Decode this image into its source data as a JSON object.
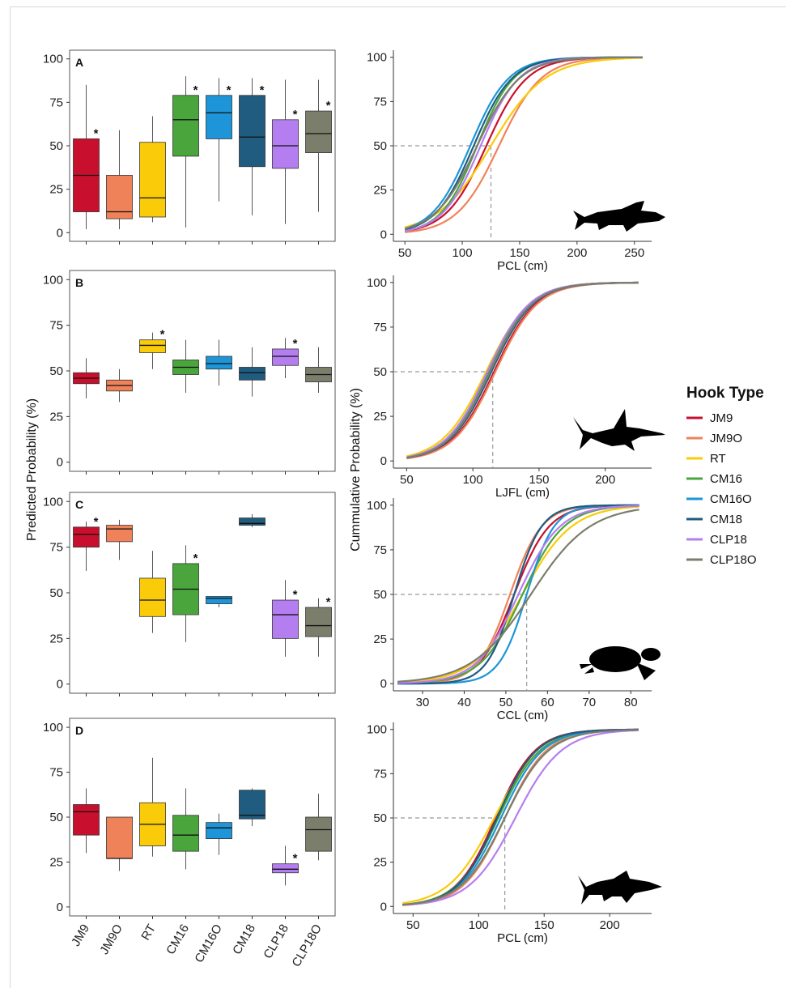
{
  "y_axis_title": "Predicted Probability (%)",
  "cum_axis_title": "Cummulative Probability (%)",
  "legend": {
    "title": "Hook Type",
    "items": [
      {
        "label": "JM9",
        "color": "#c8102e"
      },
      {
        "label": "JM9O",
        "color": "#f0825a"
      },
      {
        "label": "RT",
        "color": "#f9cb08"
      },
      {
        "label": "CM16",
        "color": "#4aa53d"
      },
      {
        "label": "CM16O",
        "color": "#1d95d8"
      },
      {
        "label": "CM18",
        "color": "#1f5c80"
      },
      {
        "label": "CLP18",
        "color": "#b57ef0"
      },
      {
        "label": "CLP18O",
        "color": "#7a7e6b"
      }
    ]
  },
  "chart_data": [
    {
      "type": "box",
      "panel": "A",
      "categories": [
        "JM9",
        "JM9O",
        "RT",
        "CM16",
        "CM16O",
        "CM18",
        "CLP18",
        "CLP18O"
      ],
      "ylim": [
        -5,
        105
      ],
      "yticks": [
        0,
        25,
        50,
        75,
        100
      ],
      "boxes": [
        {
          "min": 2,
          "q1": 12,
          "median": 33,
          "q3": 54,
          "max": 85,
          "sig": true
        },
        {
          "min": 2,
          "q1": 8,
          "median": 12,
          "q3": 33,
          "max": 59,
          "sig": false
        },
        {
          "min": 6,
          "q1": 9,
          "median": 20,
          "q3": 52,
          "max": 67,
          "sig": false
        },
        {
          "min": 3,
          "q1": 44,
          "median": 65,
          "q3": 79,
          "max": 90,
          "sig": true
        },
        {
          "min": 18,
          "q1": 54,
          "median": 69,
          "q3": 79,
          "max": 89,
          "sig": true
        },
        {
          "min": 10,
          "q1": 38,
          "median": 55,
          "q3": 79,
          "max": 89,
          "sig": true
        },
        {
          "min": 5,
          "q1": 37,
          "median": 50,
          "q3": 65,
          "max": 88,
          "sig": true
        },
        {
          "min": 12,
          "q1": 46,
          "median": 57,
          "q3": 70,
          "max": 88,
          "sig": true
        }
      ]
    },
    {
      "type": "box",
      "panel": "B",
      "categories": [
        "JM9",
        "JM9O",
        "RT",
        "CM16",
        "CM16O",
        "CM18",
        "CLP18",
        "CLP18O"
      ],
      "ylim": [
        -5,
        105
      ],
      "yticks": [
        0,
        25,
        50,
        75,
        100
      ],
      "boxes": [
        {
          "min": 35,
          "q1": 43,
          "median": 46,
          "q3": 49,
          "max": 57,
          "sig": false
        },
        {
          "min": 33,
          "q1": 39,
          "median": 42,
          "q3": 45,
          "max": 51,
          "sig": false
        },
        {
          "min": 51,
          "q1": 60,
          "median": 64,
          "q3": 67,
          "max": 71,
          "sig": true
        },
        {
          "min": 38,
          "q1": 48,
          "median": 52,
          "q3": 56,
          "max": 67,
          "sig": false
        },
        {
          "min": 42,
          "q1": 51,
          "median": 54,
          "q3": 58,
          "max": 67,
          "sig": false
        },
        {
          "min": 36,
          "q1": 45,
          "median": 49,
          "q3": 52,
          "max": 63,
          "sig": false
        },
        {
          "min": 46,
          "q1": 53,
          "median": 58,
          "q3": 62,
          "max": 68,
          "sig": true
        },
        {
          "min": 38,
          "q1": 44,
          "median": 48,
          "q3": 52,
          "max": 63,
          "sig": false
        }
      ]
    },
    {
      "type": "box",
      "panel": "C",
      "categories": [
        "JM9",
        "JM9O",
        "RT",
        "CM16",
        "CM16O",
        "CM18",
        "CLP18",
        "CLP18O"
      ],
      "ylim": [
        -5,
        105
      ],
      "yticks": [
        0,
        25,
        50,
        75,
        100
      ],
      "boxes": [
        {
          "min": 62,
          "q1": 75,
          "median": 82,
          "q3": 86,
          "max": 89,
          "sig": true
        },
        {
          "min": 68,
          "q1": 78,
          "median": 85,
          "q3": 87,
          "max": 90,
          "sig": false
        },
        {
          "min": 28,
          "q1": 37,
          "median": 46,
          "q3": 58,
          "max": 73,
          "sig": false
        },
        {
          "min": 23,
          "q1": 38,
          "median": 52,
          "q3": 66,
          "max": 76,
          "sig": true
        },
        {
          "min": 42,
          "q1": 44,
          "median": 47,
          "q3": 48,
          "max": 48,
          "sig": false
        },
        {
          "min": 86,
          "q1": 87,
          "median": 88,
          "q3": 91,
          "max": 93,
          "sig": false
        },
        {
          "min": 15,
          "q1": 25,
          "median": 38,
          "q3": 46,
          "max": 57,
          "sig": true
        },
        {
          "min": 15,
          "q1": 26,
          "median": 32,
          "q3": 42,
          "max": 47,
          "sig": true
        }
      ]
    },
    {
      "type": "box",
      "panel": "D",
      "categories": [
        "JM9",
        "JM9O",
        "RT",
        "CM16",
        "CM16O",
        "CM18",
        "CLP18",
        "CLP18O"
      ],
      "ylim": [
        -5,
        105
      ],
      "yticks": [
        0,
        25,
        50,
        75,
        100
      ],
      "boxes": [
        {
          "min": 30,
          "q1": 40,
          "median": 53,
          "q3": 57,
          "max": 66,
          "sig": false
        },
        {
          "min": 20,
          "q1": 27,
          "median": 27,
          "q3": 50,
          "max": 50,
          "sig": false
        },
        {
          "min": 28,
          "q1": 34,
          "median": 46,
          "q3": 58,
          "max": 83,
          "sig": false
        },
        {
          "min": 21,
          "q1": 31,
          "median": 40,
          "q3": 51,
          "max": 66,
          "sig": false
        },
        {
          "min": 29,
          "q1": 38,
          "median": 44,
          "q3": 47,
          "max": 52,
          "sig": false
        },
        {
          "min": 45,
          "q1": 49,
          "median": 51,
          "q3": 65,
          "max": 66,
          "sig": false
        },
        {
          "min": 12,
          "q1": 19,
          "median": 21,
          "q3": 24,
          "max": 34,
          "sig": true
        },
        {
          "min": 26,
          "q1": 31,
          "median": 43,
          "q3": 50,
          "max": 63,
          "sig": false
        }
      ]
    },
    {
      "type": "line",
      "panel": "A-cumulative",
      "xlabel": "PCL (cm)",
      "xlim": [
        40,
        265
      ],
      "xticks": [
        50,
        100,
        150,
        200,
        250
      ],
      "ylim": [
        -4,
        104
      ],
      "yticks": [
        0,
        25,
        50,
        75,
        100
      ],
      "x_range": [
        50,
        257
      ],
      "reference": {
        "x": 125,
        "y": 50
      },
      "series": [
        {
          "color": "#c8102e",
          "mid": 121,
          "scale": 17.6
        },
        {
          "color": "#f0825a",
          "mid": 132,
          "scale": 18.4
        },
        {
          "color": "#f9cb08",
          "mid": 125,
          "scale": 23.5
        },
        {
          "color": "#4aa53d",
          "mid": 113,
          "scale": 15.9
        },
        {
          "color": "#1d95d8",
          "mid": 107,
          "scale": 16.7
        },
        {
          "color": "#1f5c80",
          "mid": 110,
          "scale": 16.7
        },
        {
          "color": "#b57ef0",
          "mid": 116,
          "scale": 16.7
        },
        {
          "color": "#7a7e6b",
          "mid": 113,
          "scale": 18.4
        }
      ]
    },
    {
      "type": "line",
      "panel": "B-cumulative",
      "xlabel": "LJFL (cm)",
      "xlim": [
        40,
        235
      ],
      "xticks": [
        50,
        100,
        150,
        200
      ],
      "ylim": [
        -4,
        104
      ],
      "yticks": [
        0,
        25,
        50,
        75,
        100
      ],
      "x_range": [
        50,
        225
      ],
      "reference": {
        "x": 115,
        "y": 50
      },
      "series": [
        {
          "color": "#c8102e",
          "mid": 116,
          "scale": 15.9
        },
        {
          "color": "#f0825a",
          "mid": 117,
          "scale": 15.9
        },
        {
          "color": "#f9cb08",
          "mid": 110,
          "scale": 16.7
        },
        {
          "color": "#4aa53d",
          "mid": 112,
          "scale": 15.9
        },
        {
          "color": "#1d95d8",
          "mid": 113,
          "scale": 15.9
        },
        {
          "color": "#1f5c80",
          "mid": 114,
          "scale": 15.9
        },
        {
          "color": "#b57ef0",
          "mid": 111,
          "scale": 15.9
        },
        {
          "color": "#7a7e6b",
          "mid": 113,
          "scale": 15.9
        }
      ]
    },
    {
      "type": "line",
      "panel": "C-cumulative",
      "xlabel": "CCL (cm)",
      "xlim": [
        23,
        85
      ],
      "xticks": [
        30,
        40,
        50,
        60,
        70,
        80
      ],
      "ylim": [
        -4,
        104
      ],
      "yticks": [
        0,
        25,
        50,
        75,
        100
      ],
      "x_range": [
        24,
        82
      ],
      "reference": {
        "x": 55,
        "y": 50
      },
      "series": [
        {
          "color": "#c8102e",
          "mid": 52,
          "scale": 4.2
        },
        {
          "color": "#f0825a",
          "mid": 51,
          "scale": 3.8
        },
        {
          "color": "#f9cb08",
          "mid": 54,
          "scale": 5.9
        },
        {
          "color": "#4aa53d",
          "mid": 54,
          "scale": 5.0
        },
        {
          "color": "#1d95d8",
          "mid": 55,
          "scale": 3.3
        },
        {
          "color": "#1f5c80",
          "mid": 52,
          "scale": 3.3
        },
        {
          "color": "#b57ef0",
          "mid": 53,
          "scale": 5.0
        },
        {
          "color": "#7a7e6b",
          "mid": 56,
          "scale": 7.1
        }
      ]
    },
    {
      "type": "line",
      "panel": "D-cumulative",
      "xlabel": "PCL (cm)",
      "xlim": [
        35,
        232
      ],
      "xticks": [
        50,
        100,
        150,
        200
      ],
      "ylim": [
        -4,
        104
      ],
      "yticks": [
        0,
        25,
        50,
        75,
        100
      ],
      "x_range": [
        42,
        222
      ],
      "reference": {
        "x": 120,
        "y": 50
      },
      "series": [
        {
          "color": "#c8102e",
          "mid": 113,
          "scale": 15.1
        },
        {
          "color": "#f0825a",
          "mid": 120,
          "scale": 15.9
        },
        {
          "color": "#f9cb08",
          "mid": 112,
          "scale": 17.6
        },
        {
          "color": "#4aa53d",
          "mid": 115,
          "scale": 15.9
        },
        {
          "color": "#1d95d8",
          "mid": 117,
          "scale": 15.9
        },
        {
          "color": "#1f5c80",
          "mid": 114,
          "scale": 15.1
        },
        {
          "color": "#b57ef0",
          "mid": 128,
          "scale": 17.6
        },
        {
          "color": "#7a7e6b",
          "mid": 120,
          "scale": 16.7
        }
      ]
    }
  ]
}
